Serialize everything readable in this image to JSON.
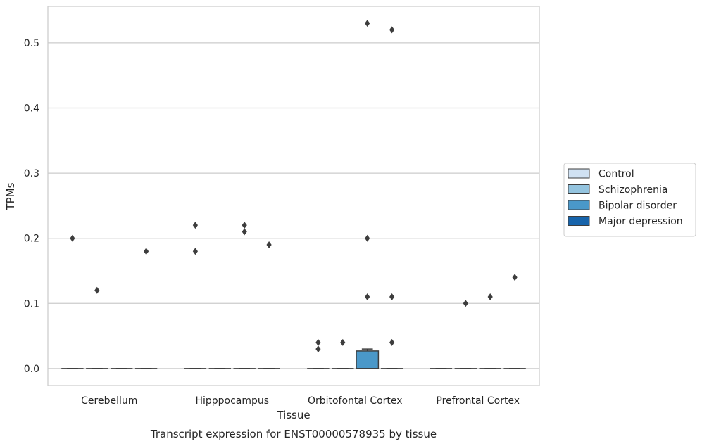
{
  "chart_data": {
    "type": "box",
    "title": "Transcript expression for ENST00000578935 by tissue",
    "xlabel": "Tissue",
    "ylabel": "TPMs",
    "ylim": [
      -0.026,
      0.556
    ],
    "yticks": [
      0.0,
      0.1,
      0.2,
      0.3,
      0.4,
      0.5
    ],
    "ytick_labels": [
      "0.0",
      "0.1",
      "0.2",
      "0.3",
      "0.4",
      "0.5"
    ],
    "grid": "horizontal",
    "legend_position": "right",
    "categories": [
      "Cerebellum",
      "Hipppocampus",
      "Orbitofontal Cortex",
      "Prefrontal Cortex"
    ],
    "series": [
      {
        "name": "Control",
        "color": "#d0e1f2",
        "boxes": [
          {
            "q1": 0,
            "median": 0,
            "q3": 0,
            "whisker_low": 0,
            "whisker_high": 0,
            "outliers": [
              0.2
            ]
          },
          {
            "q1": 0,
            "median": 0,
            "q3": 0,
            "whisker_low": 0,
            "whisker_high": 0,
            "outliers": [
              0.22,
              0.18
            ]
          },
          {
            "q1": 0,
            "median": 0,
            "q3": 0,
            "whisker_low": 0,
            "whisker_high": 0,
            "outliers": [
              0.04,
              0.03
            ]
          },
          {
            "q1": 0,
            "median": 0,
            "q3": 0,
            "whisker_low": 0,
            "whisker_high": 0,
            "outliers": []
          }
        ]
      },
      {
        "name": "Schizophrenia",
        "color": "#94c4df",
        "boxes": [
          {
            "q1": 0,
            "median": 0,
            "q3": 0,
            "whisker_low": 0,
            "whisker_high": 0,
            "outliers": [
              0.12
            ]
          },
          {
            "q1": 0,
            "median": 0,
            "q3": 0,
            "whisker_low": 0,
            "whisker_high": 0,
            "outliers": []
          },
          {
            "q1": 0,
            "median": 0,
            "q3": 0,
            "whisker_low": 0,
            "whisker_high": 0,
            "outliers": [
              0.04
            ]
          },
          {
            "q1": 0,
            "median": 0,
            "q3": 0,
            "whisker_low": 0,
            "whisker_high": 0,
            "outliers": [
              0.1
            ]
          }
        ]
      },
      {
        "name": "Bipolar disorder",
        "color": "#4a98c9",
        "boxes": [
          {
            "q1": 0,
            "median": 0,
            "q3": 0,
            "whisker_low": 0,
            "whisker_high": 0,
            "outliers": []
          },
          {
            "q1": 0,
            "median": 0,
            "q3": 0,
            "whisker_low": 0,
            "whisker_high": 0,
            "outliers": [
              0.22,
              0.21
            ]
          },
          {
            "q1": 0,
            "median": 0,
            "q3": 0.027,
            "whisker_low": 0,
            "whisker_high": 0.03,
            "outliers": [
              0.53,
              0.2,
              0.11
            ]
          },
          {
            "q1": 0,
            "median": 0,
            "q3": 0,
            "whisker_low": 0,
            "whisker_high": 0,
            "outliers": [
              0.11
            ]
          }
        ]
      },
      {
        "name": "Major depression",
        "color": "#1764ab",
        "boxes": [
          {
            "q1": 0,
            "median": 0,
            "q3": 0,
            "whisker_low": 0,
            "whisker_high": 0,
            "outliers": [
              0.18
            ]
          },
          {
            "q1": 0,
            "median": 0,
            "q3": 0,
            "whisker_low": 0,
            "whisker_high": 0,
            "outliers": [
              0.19
            ]
          },
          {
            "q1": 0,
            "median": 0,
            "q3": 0,
            "whisker_low": 0,
            "whisker_high": 0,
            "outliers": [
              0.52,
              0.11,
              0.04
            ]
          },
          {
            "q1": 0,
            "median": 0,
            "q3": 0,
            "whisker_low": 0,
            "whisker_high": 0,
            "outliers": [
              0.14
            ]
          }
        ]
      }
    ]
  }
}
